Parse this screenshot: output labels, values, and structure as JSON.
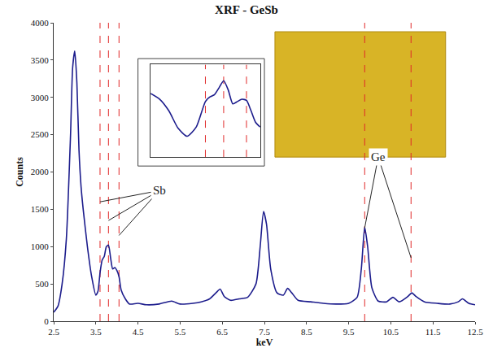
{
  "chart_data": [
    {
      "type": "line",
      "title": "XRF - GeSb",
      "x_label": "keV",
      "y_label": "Counts",
      "color": "#1c1c8c",
      "x": [
        2.5,
        2.6,
        2.7,
        2.8,
        2.9,
        2.95,
        3.0,
        3.05,
        3.1,
        3.15,
        3.2,
        3.3,
        3.4,
        3.5,
        3.55,
        3.6,
        3.65,
        3.7,
        3.75,
        3.8,
        3.85,
        3.9,
        3.95,
        4.0,
        4.05,
        4.1,
        4.2,
        4.3,
        4.5,
        4.7,
        5.0,
        5.3,
        5.5,
        5.8,
        6.0,
        6.2,
        6.35,
        6.45,
        6.55,
        6.7,
        6.9,
        7.1,
        7.3,
        7.4,
        7.48,
        7.55,
        7.65,
        7.8,
        7.95,
        8.05,
        8.15,
        8.3,
        8.6,
        8.9,
        9.2,
        9.5,
        9.7,
        9.8,
        9.88,
        9.95,
        10.05,
        10.2,
        10.4,
        10.55,
        10.7,
        10.9,
        11.0,
        11.1,
        11.3,
        11.6,
        11.9,
        12.1,
        12.2,
        12.35,
        12.5
      ],
      "values": [
        120,
        200,
        500,
        1100,
        2500,
        3400,
        3620,
        3200,
        2300,
        1800,
        1500,
        1000,
        600,
        350,
        400,
        650,
        820,
        870,
        1000,
        1020,
        850,
        700,
        720,
        680,
        600,
        420,
        300,
        230,
        240,
        220,
        230,
        270,
        230,
        240,
        260,
        300,
        380,
        430,
        330,
        280,
        300,
        320,
        500,
        1000,
        1470,
        1300,
        700,
        380,
        350,
        440,
        380,
        280,
        260,
        240,
        230,
        240,
        320,
        700,
        1260,
        1000,
        450,
        270,
        260,
        320,
        260,
        330,
        380,
        330,
        260,
        240,
        230,
        260,
        300,
        240,
        220
      ],
      "xlim": [
        2.5,
        12.5
      ],
      "xticks": [
        2.5,
        3.5,
        4.5,
        5.5,
        6.5,
        7.5,
        8.5,
        9.5,
        10.5,
        11.5,
        12.5
      ],
      "ylim": [
        0,
        4000
      ],
      "yticks": [
        0,
        500,
        1000,
        1500,
        2000,
        2500,
        3000,
        3500,
        4000
      ],
      "grid": false,
      "vlines": {
        "color": "#e02828",
        "line_style": "dash",
        "values": [
          3.6,
          3.8,
          4.05,
          9.88,
          10.98
        ]
      },
      "annotations": [
        {
          "text": "Sb",
          "x": 5.0,
          "y": 1750,
          "points": [
            [
              3.6,
              1600
            ],
            [
              3.8,
              1350
            ],
            [
              4.05,
              1150
            ]
          ]
        },
        {
          "text": "Ge",
          "x": 10.2,
          "y": 2200,
          "points": [
            [
              9.88,
              1250
            ],
            [
              10.98,
              850
            ]
          ]
        }
      ]
    },
    {
      "type": "line",
      "color": "#1c1c8c",
      "x": [
        3.0,
        3.1,
        3.2,
        3.3,
        3.4,
        3.5,
        3.6,
        3.65,
        3.7,
        3.75,
        3.8,
        3.85,
        3.9,
        3.95,
        4.0,
        4.05,
        4.1,
        4.15,
        4.2
      ],
      "values": [
        850,
        800,
        700,
        550,
        480,
        560,
        780,
        820,
        840,
        900,
        960,
        880,
        760,
        780,
        800,
        790,
        700,
        600,
        560
      ],
      "xlim": [
        3.0,
        4.2
      ],
      "ylim": [
        300,
        1100
      ],
      "tick_labels": false,
      "grid": false,
      "vlines": {
        "color": "#e02828",
        "line_style": "dash",
        "values": [
          3.6,
          3.8,
          4.05
        ]
      }
    }
  ]
}
